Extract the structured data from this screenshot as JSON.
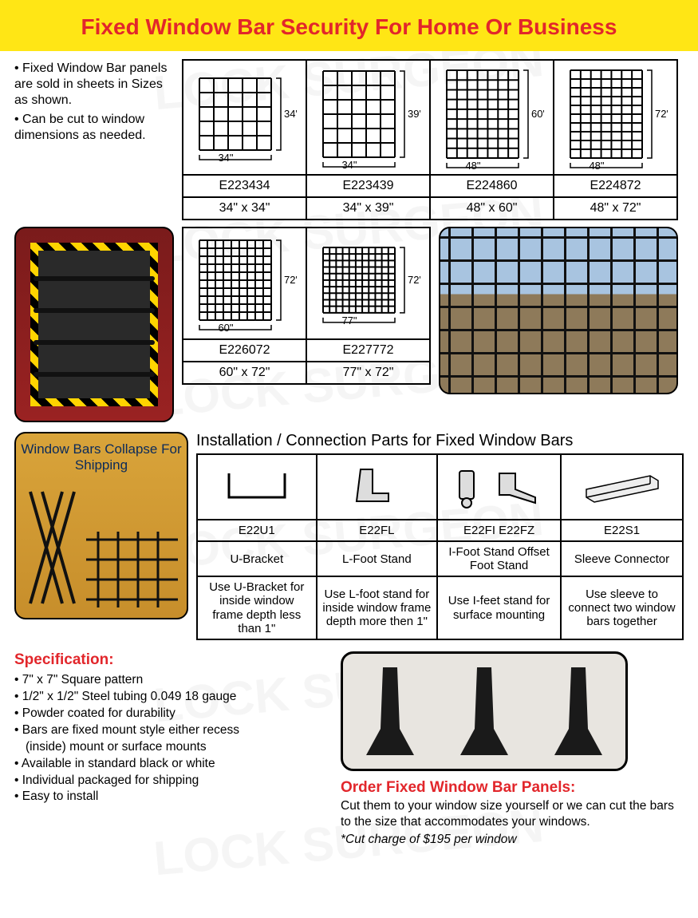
{
  "title": "Fixed Window Bar Security For Home Or Business",
  "intro": {
    "bullet1": "Fixed Window Bar panels are sold in sheets in Sizes as shown.",
    "bullet2": "Can be cut to window dimensions as needed."
  },
  "products_row1": [
    {
      "code": "E223434",
      "dim": "34\" x 34\"",
      "w": "34\"",
      "h": "34\"",
      "cols": 5,
      "rows": 5
    },
    {
      "code": "E223439",
      "dim": "34\" x 39\"",
      "w": "34\"",
      "h": "39\"",
      "cols": 5,
      "rows": 6
    },
    {
      "code": "E224860",
      "dim": "48\" x 60\"",
      "w": "48\"",
      "h": "60\"",
      "cols": 7,
      "rows": 9
    },
    {
      "code": "E224872",
      "dim": "48\" x 72\"",
      "w": "48\"",
      "h": "72\"",
      "cols": 7,
      "rows": 10
    }
  ],
  "products_row2": [
    {
      "code": "E226072",
      "dim": "60\" x 72\"",
      "w": "60\"",
      "h": "72\"",
      "cols": 9,
      "rows": 10
    },
    {
      "code": "E227772",
      "dim": "77\" x 72\"",
      "w": "77\"",
      "h": "72\"",
      "cols": 11,
      "rows": 10
    }
  ],
  "collapse_label": "Window Bars Collapse For Shipping",
  "parts_title": "Installation / Connection Parts for Fixed Window Bars",
  "parts": [
    {
      "code": "E22U1",
      "name": "U-Bracket",
      "desc": "Use U-Bracket for inside window frame depth less than 1\""
    },
    {
      "code": "E22FL",
      "name": "L-Foot Stand",
      "desc": "Use L-foot stand for inside window frame depth more then 1\""
    },
    {
      "code": "E22FI    E22FZ",
      "name": "I-Foot Stand Offset Foot Stand",
      "desc": "Use I-feet stand for surface mounting"
    },
    {
      "code": "E22S1",
      "name": "Sleeve Connector",
      "desc": "Use sleeve to connect two window bars together"
    }
  ],
  "spec_title": "Specification:",
  "specs": [
    "7\" x 7\" Square pattern",
    "1/2\" x 1/2\" Steel tubing 0.049  18 gauge",
    "Powder coated for durability",
    "Bars are fixed mount style either recess",
    "(inside) mount or surface mounts",
    "Available in standard black or white",
    "Individual packaged for shipping",
    "Easy to install"
  ],
  "order_title": "Order Fixed Window Bar Panels:",
  "order_text": "Cut them to your window size yourself or we can cut the bars to the size that accommodates your windows.",
  "order_note": "*Cut charge of $195 per window",
  "colors": {
    "title_bg": "#ffe615",
    "accent": "#e2262b",
    "border": "#000000"
  }
}
